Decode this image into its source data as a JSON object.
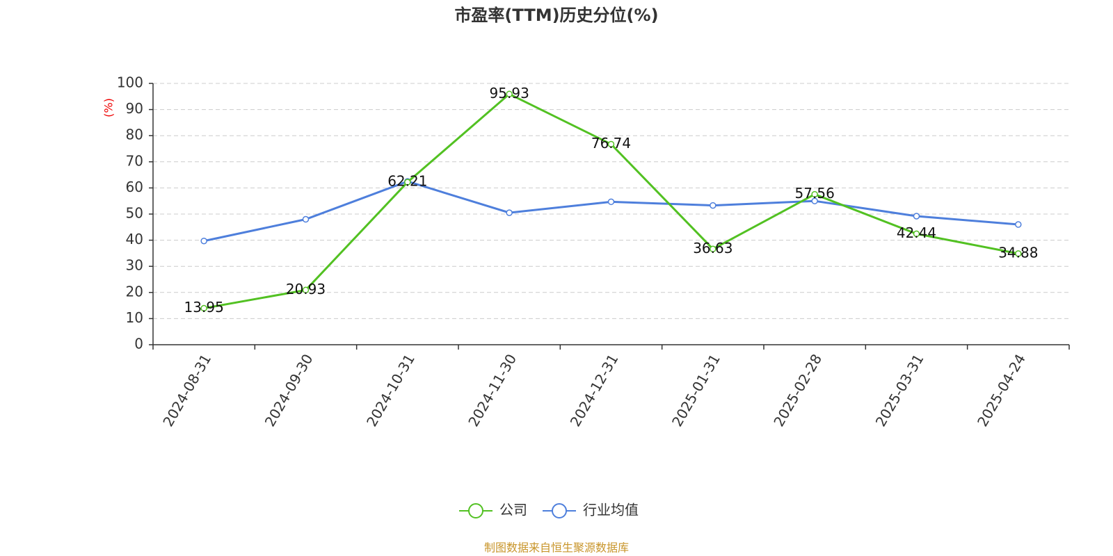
{
  "chart_data": {
    "type": "line",
    "title": "市盈率(TTM)历史分位(%)",
    "y_label": "(%)",
    "categories": [
      "2024-08-31",
      "2024-09-30",
      "2024-10-31",
      "2024-11-30",
      "2024-12-31",
      "2025-01-31",
      "2025-02-28",
      "2025-03-31",
      "2025-04-24"
    ],
    "series": [
      {
        "name": "公司",
        "color": "#52c122",
        "values": [
          13.95,
          20.93,
          62.21,
          95.93,
          76.74,
          36.63,
          57.56,
          42.44,
          34.88
        ],
        "show_labels": true
      },
      {
        "name": "行业均值",
        "color": "#4e7fdc",
        "values": [
          39.7,
          48,
          62.5,
          50.5,
          54.7,
          53.3,
          55,
          49.2,
          46
        ],
        "show_labels": false
      }
    ],
    "ylim": [
      0,
      100
    ],
    "yticks": [
      0,
      10,
      20,
      30,
      40,
      50,
      60,
      70,
      80,
      90,
      100
    ],
    "grid": true,
    "legend": "bottom",
    "source": "制图数据来自恒生聚源数据库"
  }
}
